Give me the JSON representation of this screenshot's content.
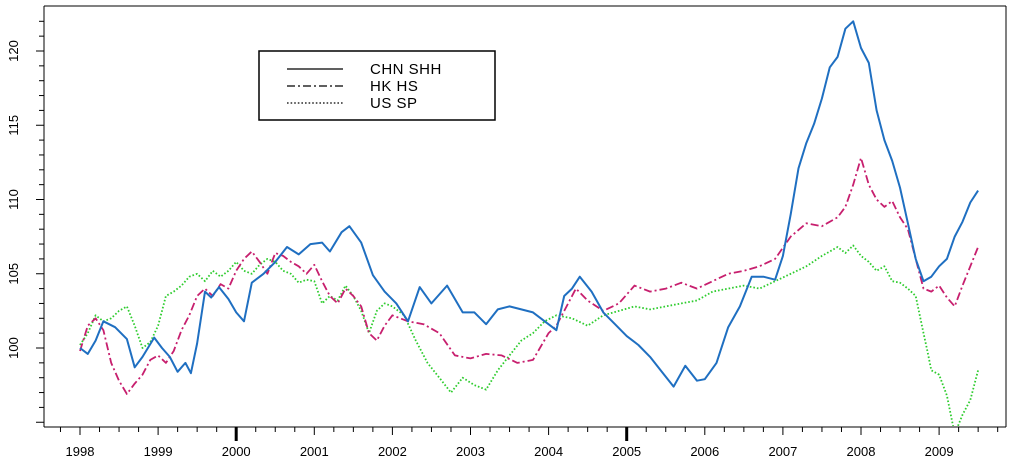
{
  "chart_data": {
    "type": "line",
    "title": "",
    "xlabel": "",
    "ylabel": "",
    "xlim": [
      1998,
      2009.9
    ],
    "ylim": [
      92.5,
      122.5
    ],
    "x_ticks": [
      "1998",
      "1999",
      "2000",
      "2001",
      "2002",
      "2003",
      "2004",
      "2005",
      "2006",
      "2007",
      "2008",
      "2009"
    ],
    "y_ticks": [
      "100",
      "105",
      "110",
      "115",
      "120"
    ],
    "grid": false,
    "legend_position": "top-left",
    "series": [
      {
        "name": "CHN SHH",
        "line_style": "solid",
        "color": "#1f6fc1",
        "x": [
          1998.0,
          1998.1,
          1998.2,
          1998.3,
          1998.45,
          1998.6,
          1998.7,
          1998.8,
          1998.95,
          1999.05,
          1999.15,
          1999.25,
          1999.35,
          1999.42,
          1999.5,
          1999.6,
          1999.68,
          1999.78,
          1999.9,
          2000.0,
          2000.1,
          2000.2,
          2000.35,
          2000.5,
          2000.65,
          2000.8,
          2000.95,
          2001.1,
          2001.2,
          2001.35,
          2001.45,
          2001.6,
          2001.75,
          2001.9,
          2002.05,
          2002.2,
          2002.35,
          2002.5,
          2002.7,
          2002.9,
          2003.05,
          2003.2,
          2003.35,
          2003.5,
          2003.65,
          2003.8,
          2003.95,
          2004.1,
          2004.2,
          2004.3,
          2004.4,
          2004.55,
          2004.7,
          2004.85,
          2005.0,
          2005.15,
          2005.3,
          2005.45,
          2005.6,
          2005.75,
          2005.9,
          2006.0,
          2006.15,
          2006.3,
          2006.45,
          2006.6,
          2006.75,
          2006.9,
          2007.0,
          2007.1,
          2007.2,
          2007.3,
          2007.4,
          2007.5,
          2007.6,
          2007.7,
          2007.8,
          2007.9,
          2008.0,
          2008.1,
          2008.2,
          2008.3,
          2008.4,
          2008.5,
          2008.6,
          2008.7,
          2008.8,
          2008.9,
          2009.0,
          2009.1,
          2009.2,
          2009.3,
          2009.4,
          2009.5
        ],
        "y": [
          100.0,
          99.6,
          100.5,
          101.8,
          101.4,
          100.6,
          98.7,
          99.4,
          100.7,
          100.0,
          99.4,
          98.4,
          99.0,
          98.3,
          100.3,
          103.8,
          103.4,
          104.1,
          103.3,
          102.4,
          101.8,
          104.4,
          105.0,
          105.8,
          106.8,
          106.3,
          107.0,
          107.1,
          106.5,
          107.8,
          108.2,
          107.1,
          104.9,
          103.8,
          103.0,
          101.8,
          104.1,
          103.0,
          104.2,
          102.4,
          102.4,
          101.6,
          102.6,
          102.8,
          102.6,
          102.4,
          101.8,
          101.2,
          103.5,
          104.0,
          104.8,
          103.8,
          102.4,
          101.6,
          100.8,
          100.2,
          99.4,
          98.4,
          97.4,
          98.8,
          97.8,
          97.9,
          99.0,
          101.4,
          102.8,
          104.8,
          104.8,
          104.6,
          106.2,
          109.0,
          112.1,
          113.8,
          115.1,
          116.8,
          118.9,
          119.6,
          121.5,
          122.0,
          120.2,
          119.2,
          116.0,
          114.0,
          112.6,
          110.8,
          108.4,
          106.0,
          104.5,
          104.8,
          105.5,
          106.0,
          107.5,
          108.5,
          109.8,
          110.6
        ]
      },
      {
        "name": "HK HS",
        "line_style": "dash-dot",
        "color": "#c71f6e",
        "x": [
          1998.0,
          1998.1,
          1998.2,
          1998.3,
          1998.4,
          1998.5,
          1998.6,
          1998.7,
          1998.8,
          1998.9,
          1999.0,
          1999.1,
          1999.2,
          1999.3,
          1999.4,
          1999.5,
          1999.6,
          1999.7,
          1999.8,
          1999.9,
          2000.0,
          2000.1,
          2000.2,
          2000.3,
          2000.4,
          2000.5,
          2000.6,
          2000.7,
          2000.8,
          2000.9,
          2001.0,
          2001.1,
          2001.2,
          2001.3,
          2001.4,
          2001.5,
          2001.6,
          2001.7,
          2001.8,
          2001.9,
          2002.0,
          2002.2,
          2002.4,
          2002.6,
          2002.8,
          2003.0,
          2003.2,
          2003.4,
          2003.6,
          2003.8,
          2004.0,
          2004.1,
          2004.2,
          2004.35,
          2004.5,
          2004.7,
          2004.9,
          2005.1,
          2005.3,
          2005.5,
          2005.7,
          2005.9,
          2006.1,
          2006.3,
          2006.5,
          2006.7,
          2006.9,
          2007.1,
          2007.3,
          2007.5,
          2007.7,
          2007.8,
          2007.9,
          2008.0,
          2008.1,
          2008.2,
          2008.3,
          2008.4,
          2008.5,
          2008.6,
          2008.7,
          2008.8,
          2008.9,
          2009.0,
          2009.1,
          2009.2,
          2009.3,
          2009.4,
          2009.5
        ],
        "y": [
          99.8,
          101.5,
          102.0,
          101.2,
          99.0,
          97.8,
          96.9,
          97.6,
          98.2,
          99.2,
          99.5,
          99.0,
          99.8,
          101.2,
          102.2,
          103.5,
          104.0,
          103.5,
          104.3,
          104.0,
          105.2,
          106.0,
          106.5,
          105.8,
          105.0,
          106.4,
          106.2,
          105.8,
          105.5,
          105.0,
          105.6,
          104.5,
          103.5,
          103.0,
          104.0,
          103.5,
          102.8,
          101.0,
          100.5,
          101.5,
          102.2,
          101.8,
          101.6,
          101.0,
          99.5,
          99.3,
          99.6,
          99.5,
          99.0,
          99.2,
          101.0,
          101.5,
          102.5,
          104.0,
          103.2,
          102.5,
          103.0,
          104.2,
          103.8,
          104.0,
          104.4,
          104.0,
          104.5,
          105.0,
          105.2,
          105.5,
          106.0,
          107.5,
          108.4,
          108.2,
          108.8,
          109.5,
          111.0,
          112.8,
          111.0,
          110.0,
          109.5,
          109.9,
          108.8,
          108.0,
          106.0,
          104.0,
          103.8,
          104.2,
          103.4,
          102.8,
          104.2,
          105.5,
          106.8
        ]
      },
      {
        "name": "US SP",
        "line_style": "dotted",
        "color": "#2ecc2e",
        "x": [
          1998.0,
          1998.1,
          1998.2,
          1998.3,
          1998.4,
          1998.5,
          1998.6,
          1998.7,
          1998.8,
          1998.9,
          1999.0,
          1999.1,
          1999.2,
          1999.3,
          1999.4,
          1999.5,
          1999.6,
          1999.7,
          1999.8,
          1999.9,
          2000.0,
          2000.1,
          2000.2,
          2000.3,
          2000.4,
          2000.5,
          2000.6,
          2000.7,
          2000.8,
          2000.9,
          2001.0,
          2001.1,
          2001.2,
          2001.3,
          2001.4,
          2001.5,
          2001.6,
          2001.7,
          2001.8,
          2001.9,
          2002.0,
          2002.15,
          2002.3,
          2002.45,
          2002.6,
          2002.75,
          2002.9,
          2003.05,
          2003.2,
          2003.35,
          2003.5,
          2003.65,
          2003.8,
          2003.95,
          2004.1,
          2004.3,
          2004.5,
          2004.7,
          2004.9,
          2005.1,
          2005.3,
          2005.5,
          2005.7,
          2005.9,
          2006.1,
          2006.3,
          2006.5,
          2006.7,
          2006.9,
          2007.1,
          2007.3,
          2007.5,
          2007.6,
          2007.7,
          2007.8,
          2007.9,
          2008.0,
          2008.1,
          2008.2,
          2008.3,
          2008.4,
          2008.5,
          2008.6,
          2008.7,
          2008.8,
          2008.85,
          2008.9,
          2009.0,
          2009.1,
          2009.15,
          2009.2,
          2009.3,
          2009.4,
          2009.5
        ],
        "y": [
          100.2,
          101.0,
          102.2,
          101.8,
          102.0,
          102.5,
          102.8,
          101.5,
          100.0,
          100.4,
          101.5,
          103.5,
          103.8,
          104.2,
          104.8,
          105.0,
          104.5,
          105.2,
          104.8,
          105.2,
          105.8,
          105.2,
          105.0,
          105.6,
          106.0,
          105.8,
          105.2,
          105.0,
          104.4,
          104.6,
          104.5,
          103.0,
          103.5,
          103.2,
          104.2,
          103.5,
          102.5,
          101.0,
          102.5,
          103.0,
          102.8,
          102.2,
          100.5,
          99.0,
          98.0,
          97.0,
          98.0,
          97.5,
          97.2,
          98.5,
          99.5,
          100.5,
          101.0,
          101.8,
          102.2,
          102.0,
          101.5,
          102.2,
          102.5,
          102.8,
          102.6,
          102.8,
          103.0,
          103.2,
          103.8,
          104.0,
          104.2,
          104.0,
          104.5,
          105.0,
          105.5,
          106.2,
          106.5,
          106.8,
          106.4,
          106.9,
          106.2,
          105.8,
          105.2,
          105.5,
          104.5,
          104.4,
          104.0,
          103.5,
          101.0,
          99.8,
          98.5,
          98.2,
          96.8,
          95.5,
          94.2,
          95.5,
          96.5,
          98.5
        ]
      }
    ]
  }
}
